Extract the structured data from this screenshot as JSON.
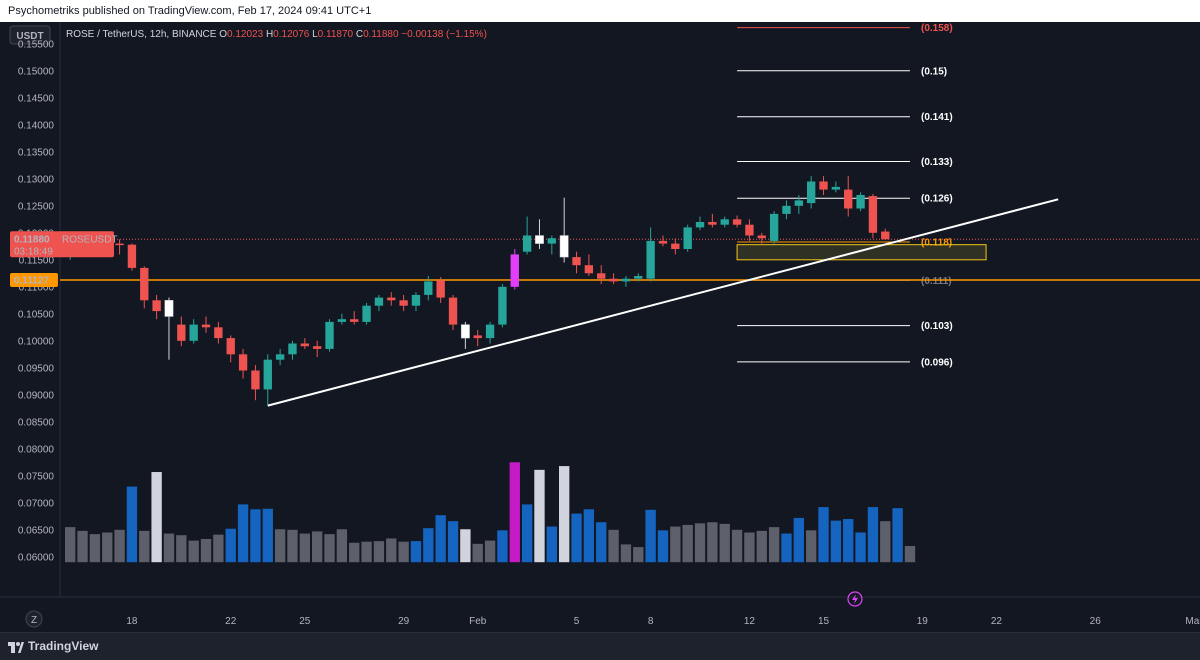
{
  "publisher_line": "Psychometriks published on TradingView.com, Feb 17, 2024 09:41 UTC+1",
  "footer": {
    "brand": "TradingView",
    "logo_icon": "tradingview-logo-icon"
  },
  "currency_tab": "USDT",
  "z_button": "Z",
  "legend": {
    "symbol": "ROSE / TetherUS, 12h, BINANCE",
    "o_label": "O",
    "o_value": "0.12023",
    "h_label": "H",
    "h_value": "0.12076",
    "l_label": "L",
    "l_value": "0.11870",
    "c_label": "C",
    "c_value": "0.11880",
    "change": "−0.00138 (−1.15%)"
  },
  "price_tag": {
    "value": "0.11880",
    "symbol": "ROSEUSDT",
    "countdown": "03:18:49"
  },
  "level_tag": {
    "value": "0.11127"
  },
  "colors": {
    "up": "#26a69a",
    "down": "#ef5350",
    "accent_orange": "#ff9800",
    "magenta": "#e040fb",
    "volume_blue": "#1565c0",
    "volume_grey": "#5d606b",
    "background": "#131722",
    "grid": "#1e222d"
  },
  "chart_data": {
    "type": "candlestick",
    "y_axis": {
      "min": 0.057,
      "max": 0.157,
      "ticks": [
        "0.15500",
        "0.15000",
        "0.14500",
        "0.14000",
        "0.13500",
        "0.13000",
        "0.12500",
        "0.12000",
        "0.11500",
        "0.11000",
        "0.10500",
        "0.10000",
        "0.09500",
        "0.09000",
        "0.08500",
        "0.08000",
        "0.07500",
        "0.07000",
        "0.06500",
        "0.06000"
      ]
    },
    "x_axis": {
      "ticks": [
        {
          "label": "18",
          "bar": 5
        },
        {
          "label": "22",
          "bar": 13
        },
        {
          "label": "25",
          "bar": 19
        },
        {
          "label": "29",
          "bar": 27
        },
        {
          "label": "Feb",
          "bar": 33
        },
        {
          "label": "5",
          "bar": 41
        },
        {
          "label": "8",
          "bar": 47
        },
        {
          "label": "12",
          "bar": 55
        },
        {
          "label": "15",
          "bar": 61
        },
        {
          "label": "19",
          "bar": 69
        },
        {
          "label": "22",
          "bar": 75
        },
        {
          "label": "26",
          "bar": 83
        },
        {
          "label": "Mar",
          "bar": 91
        }
      ]
    },
    "candles": [
      {
        "o": 0.1158,
        "h": 0.1198,
        "l": 0.115,
        "c": 0.119,
        "color": "up"
      },
      {
        "o": 0.119,
        "h": 0.12,
        "l": 0.1182,
        "c": 0.1192,
        "color": "up"
      },
      {
        "o": 0.1192,
        "h": 0.1202,
        "l": 0.118,
        "c": 0.1185,
        "color": "down"
      },
      {
        "o": 0.1185,
        "h": 0.1195,
        "l": 0.1175,
        "c": 0.118,
        "color": "down"
      },
      {
        "o": 0.118,
        "h": 0.1188,
        "l": 0.116,
        "c": 0.1178,
        "color": "down"
      },
      {
        "o": 0.1178,
        "h": 0.118,
        "l": 0.113,
        "c": 0.1135,
        "color": "down"
      },
      {
        "o": 0.1135,
        "h": 0.1138,
        "l": 0.106,
        "c": 0.1075,
        "color": "down"
      },
      {
        "o": 0.1075,
        "h": 0.1085,
        "l": 0.104,
        "c": 0.1055,
        "color": "down"
      },
      {
        "o": 0.1045,
        "h": 0.108,
        "l": 0.0965,
        "c": 0.1075,
        "color": "white"
      },
      {
        "o": 0.103,
        "h": 0.1045,
        "l": 0.099,
        "c": 0.1,
        "color": "down"
      },
      {
        "o": 0.1,
        "h": 0.104,
        "l": 0.0995,
        "c": 0.103,
        "color": "up"
      },
      {
        "o": 0.103,
        "h": 0.1045,
        "l": 0.1015,
        "c": 0.1025,
        "color": "down"
      },
      {
        "o": 0.1025,
        "h": 0.1035,
        "l": 0.0995,
        "c": 0.1005,
        "color": "down"
      },
      {
        "o": 0.1005,
        "h": 0.101,
        "l": 0.096,
        "c": 0.0975,
        "color": "down"
      },
      {
        "o": 0.0975,
        "h": 0.0985,
        "l": 0.093,
        "c": 0.0945,
        "color": "down"
      },
      {
        "o": 0.0945,
        "h": 0.0955,
        "l": 0.089,
        "c": 0.091,
        "color": "down"
      },
      {
        "o": 0.091,
        "h": 0.0975,
        "l": 0.088,
        "c": 0.0965,
        "color": "up"
      },
      {
        "o": 0.0965,
        "h": 0.0985,
        "l": 0.0955,
        "c": 0.0975,
        "color": "up"
      },
      {
        "o": 0.0975,
        "h": 0.1,
        "l": 0.0965,
        "c": 0.0995,
        "color": "up"
      },
      {
        "o": 0.0995,
        "h": 0.1005,
        "l": 0.0985,
        "c": 0.099,
        "color": "down"
      },
      {
        "o": 0.099,
        "h": 0.1,
        "l": 0.097,
        "c": 0.0985,
        "color": "down"
      },
      {
        "o": 0.0985,
        "h": 0.104,
        "l": 0.098,
        "c": 0.1035,
        "color": "up"
      },
      {
        "o": 0.1035,
        "h": 0.105,
        "l": 0.103,
        "c": 0.104,
        "color": "up"
      },
      {
        "o": 0.104,
        "h": 0.1055,
        "l": 0.103,
        "c": 0.1035,
        "color": "down"
      },
      {
        "o": 0.1035,
        "h": 0.107,
        "l": 0.103,
        "c": 0.1065,
        "color": "up"
      },
      {
        "o": 0.1065,
        "h": 0.1085,
        "l": 0.1055,
        "c": 0.108,
        "color": "up"
      },
      {
        "o": 0.108,
        "h": 0.109,
        "l": 0.1065,
        "c": 0.1075,
        "color": "down"
      },
      {
        "o": 0.1075,
        "h": 0.1085,
        "l": 0.1055,
        "c": 0.1065,
        "color": "down"
      },
      {
        "o": 0.1065,
        "h": 0.109,
        "l": 0.1055,
        "c": 0.1085,
        "color": "up"
      },
      {
        "o": 0.1085,
        "h": 0.112,
        "l": 0.1075,
        "c": 0.111,
        "color": "up"
      },
      {
        "o": 0.1112,
        "h": 0.1118,
        "l": 0.107,
        "c": 0.108,
        "color": "down"
      },
      {
        "o": 0.108,
        "h": 0.1085,
        "l": 0.102,
        "c": 0.103,
        "color": "down"
      },
      {
        "o": 0.103,
        "h": 0.1035,
        "l": 0.0985,
        "c": 0.1005,
        "color": "white"
      },
      {
        "o": 0.1005,
        "h": 0.102,
        "l": 0.099,
        "c": 0.101,
        "color": "down"
      },
      {
        "o": 0.1005,
        "h": 0.1035,
        "l": 0.0995,
        "c": 0.103,
        "color": "up"
      },
      {
        "o": 0.103,
        "h": 0.1105,
        "l": 0.1025,
        "c": 0.11,
        "color": "up"
      },
      {
        "o": 0.11,
        "h": 0.117,
        "l": 0.1095,
        "c": 0.116,
        "color": "magenta"
      },
      {
        "o": 0.1165,
        "h": 0.123,
        "l": 0.116,
        "c": 0.1195,
        "color": "up"
      },
      {
        "o": 0.1195,
        "h": 0.1225,
        "l": 0.117,
        "c": 0.118,
        "color": "white"
      },
      {
        "o": 0.118,
        "h": 0.1195,
        "l": 0.116,
        "c": 0.119,
        "color": "up"
      },
      {
        "o": 0.1195,
        "h": 0.1265,
        "l": 0.1145,
        "c": 0.1155,
        "color": "white"
      },
      {
        "o": 0.1155,
        "h": 0.1165,
        "l": 0.1125,
        "c": 0.114,
        "color": "down"
      },
      {
        "o": 0.114,
        "h": 0.116,
        "l": 0.112,
        "c": 0.1125,
        "color": "down"
      },
      {
        "o": 0.1125,
        "h": 0.114,
        "l": 0.1105,
        "c": 0.1115,
        "color": "down"
      },
      {
        "o": 0.1115,
        "h": 0.1125,
        "l": 0.1105,
        "c": 0.111,
        "color": "down"
      },
      {
        "o": 0.111,
        "h": 0.112,
        "l": 0.11,
        "c": 0.1115,
        "color": "up"
      },
      {
        "o": 0.1115,
        "h": 0.1125,
        "l": 0.111,
        "c": 0.112,
        "color": "up"
      },
      {
        "o": 0.1115,
        "h": 0.121,
        "l": 0.111,
        "c": 0.1185,
        "color": "up"
      },
      {
        "o": 0.1185,
        "h": 0.1195,
        "l": 0.1175,
        "c": 0.118,
        "color": "down"
      },
      {
        "o": 0.118,
        "h": 0.119,
        "l": 0.116,
        "c": 0.117,
        "color": "down"
      },
      {
        "o": 0.117,
        "h": 0.1215,
        "l": 0.1165,
        "c": 0.121,
        "color": "up"
      },
      {
        "o": 0.121,
        "h": 0.123,
        "l": 0.1205,
        "c": 0.122,
        "color": "up"
      },
      {
        "o": 0.122,
        "h": 0.1235,
        "l": 0.121,
        "c": 0.1215,
        "color": "down"
      },
      {
        "o": 0.1215,
        "h": 0.123,
        "l": 0.121,
        "c": 0.1225,
        "color": "up"
      },
      {
        "o": 0.1225,
        "h": 0.1232,
        "l": 0.121,
        "c": 0.1215,
        "color": "down"
      },
      {
        "o": 0.1215,
        "h": 0.1225,
        "l": 0.1185,
        "c": 0.1195,
        "color": "down"
      },
      {
        "o": 0.1195,
        "h": 0.12,
        "l": 0.118,
        "c": 0.119,
        "color": "down"
      },
      {
        "o": 0.1185,
        "h": 0.124,
        "l": 0.118,
        "c": 0.1235,
        "color": "up"
      },
      {
        "o": 0.1235,
        "h": 0.126,
        "l": 0.1225,
        "c": 0.125,
        "color": "up"
      },
      {
        "o": 0.125,
        "h": 0.127,
        "l": 0.1235,
        "c": 0.126,
        "color": "up"
      },
      {
        "o": 0.1255,
        "h": 0.1305,
        "l": 0.1245,
        "c": 0.1295,
        "color": "up"
      },
      {
        "o": 0.1295,
        "h": 0.1305,
        "l": 0.127,
        "c": 0.128,
        "color": "down"
      },
      {
        "o": 0.128,
        "h": 0.1295,
        "l": 0.1275,
        "c": 0.1285,
        "color": "up"
      },
      {
        "o": 0.128,
        "h": 0.1305,
        "l": 0.123,
        "c": 0.1245,
        "color": "down"
      },
      {
        "o": 0.1245,
        "h": 0.1275,
        "l": 0.124,
        "c": 0.127,
        "color": "up"
      },
      {
        "o": 0.1268,
        "h": 0.1272,
        "l": 0.119,
        "c": 0.12,
        "color": "down"
      },
      {
        "o": 0.12023,
        "h": 0.12076,
        "l": 0.1187,
        "c": 0.1188,
        "color": "down"
      }
    ],
    "volumes": [
      {
        "v": 0.0655,
        "color": "grey"
      },
      {
        "v": 0.0648,
        "color": "grey"
      },
      {
        "v": 0.0642,
        "color": "grey"
      },
      {
        "v": 0.0645,
        "color": "grey"
      },
      {
        "v": 0.065,
        "color": "grey"
      },
      {
        "v": 0.073,
        "color": "blue"
      },
      {
        "v": 0.0648,
        "color": "grey"
      },
      {
        "v": 0.0757,
        "color": "white"
      },
      {
        "v": 0.0643,
        "color": "grey"
      },
      {
        "v": 0.064,
        "color": "grey"
      },
      {
        "v": 0.063,
        "color": "grey"
      },
      {
        "v": 0.0633,
        "color": "grey"
      },
      {
        "v": 0.0641,
        "color": "grey"
      },
      {
        "v": 0.0652,
        "color": "blue"
      },
      {
        "v": 0.0697,
        "color": "blue"
      },
      {
        "v": 0.0688,
        "color": "blue"
      },
      {
        "v": 0.0689,
        "color": "blue"
      },
      {
        "v": 0.0651,
        "color": "grey"
      },
      {
        "v": 0.065,
        "color": "grey"
      },
      {
        "v": 0.0643,
        "color": "grey"
      },
      {
        "v": 0.0647,
        "color": "grey"
      },
      {
        "v": 0.0642,
        "color": "grey"
      },
      {
        "v": 0.0651,
        "color": "grey"
      },
      {
        "v": 0.0626,
        "color": "grey"
      },
      {
        "v": 0.0628,
        "color": "grey"
      },
      {
        "v": 0.0629,
        "color": "grey"
      },
      {
        "v": 0.0634,
        "color": "grey"
      },
      {
        "v": 0.0628,
        "color": "grey"
      },
      {
        "v": 0.0629,
        "color": "blue"
      },
      {
        "v": 0.0653,
        "color": "blue"
      },
      {
        "v": 0.0677,
        "color": "blue"
      },
      {
        "v": 0.0666,
        "color": "blue"
      },
      {
        "v": 0.0651,
        "color": "white"
      },
      {
        "v": 0.0624,
        "color": "grey"
      },
      {
        "v": 0.063,
        "color": "grey"
      },
      {
        "v": 0.0649,
        "color": "blue"
      },
      {
        "v": 0.0775,
        "color": "magenta"
      },
      {
        "v": 0.0697,
        "color": "blue"
      },
      {
        "v": 0.0761,
        "color": "white"
      },
      {
        "v": 0.0656,
        "color": "blue"
      },
      {
        "v": 0.0768,
        "color": "white"
      },
      {
        "v": 0.068,
        "color": "blue"
      },
      {
        "v": 0.0688,
        "color": "blue"
      },
      {
        "v": 0.0664,
        "color": "blue"
      },
      {
        "v": 0.065,
        "color": "grey"
      },
      {
        "v": 0.0623,
        "color": "grey"
      },
      {
        "v": 0.0618,
        "color": "grey"
      },
      {
        "v": 0.0687,
        "color": "blue"
      },
      {
        "v": 0.0649,
        "color": "blue"
      },
      {
        "v": 0.0656,
        "color": "grey"
      },
      {
        "v": 0.0659,
        "color": "grey"
      },
      {
        "v": 0.0662,
        "color": "grey"
      },
      {
        "v": 0.0664,
        "color": "grey"
      },
      {
        "v": 0.0661,
        "color": "grey"
      },
      {
        "v": 0.065,
        "color": "grey"
      },
      {
        "v": 0.0645,
        "color": "grey"
      },
      {
        "v": 0.0648,
        "color": "grey"
      },
      {
        "v": 0.0655,
        "color": "grey"
      },
      {
        "v": 0.0643,
        "color": "blue"
      },
      {
        "v": 0.0672,
        "color": "blue"
      },
      {
        "v": 0.0649,
        "color": "grey"
      },
      {
        "v": 0.0692,
        "color": "blue"
      },
      {
        "v": 0.0667,
        "color": "blue"
      },
      {
        "v": 0.067,
        "color": "blue"
      },
      {
        "v": 0.0645,
        "color": "blue"
      },
      {
        "v": 0.0692,
        "color": "blue"
      },
      {
        "v": 0.0666,
        "color": "grey"
      },
      {
        "v": 0.069,
        "color": "blue"
      },
      {
        "v": 0.062,
        "color": "grey"
      }
    ],
    "fib_levels": [
      {
        "label": "(0.158)",
        "value": 0.158,
        "color": "#ef5350"
      },
      {
        "label": "(0.15)",
        "value": 0.15,
        "color": "#ffffff"
      },
      {
        "label": "(0.141)",
        "value": 0.1415,
        "color": "#ffffff"
      },
      {
        "label": "(0.133)",
        "value": 0.1332,
        "color": "#ffffff"
      },
      {
        "label": "(0.126)",
        "value": 0.1264,
        "color": "#ffffff"
      },
      {
        "label": "(0.118)",
        "value": 0.1183,
        "color": "#ff9800"
      },
      {
        "label": "(0.111)",
        "value": 0.1112,
        "color": "#787b86"
      },
      {
        "label": "(0.103)",
        "value": 0.1028,
        "color": "#ffffff"
      },
      {
        "label": "(0.096)",
        "value": 0.0961,
        "color": "#ffffff"
      }
    ],
    "trendline": {
      "x1": 16.5,
      "y1": 0.088,
      "x2": 80.5,
      "y2": 0.1262
    },
    "horizontal_line": {
      "value": 0.11127,
      "color": "#ff9800"
    },
    "zone": {
      "x1": 54.5,
      "x2": 74.5,
      "top": 0.1178,
      "bottom": 0.115
    }
  }
}
